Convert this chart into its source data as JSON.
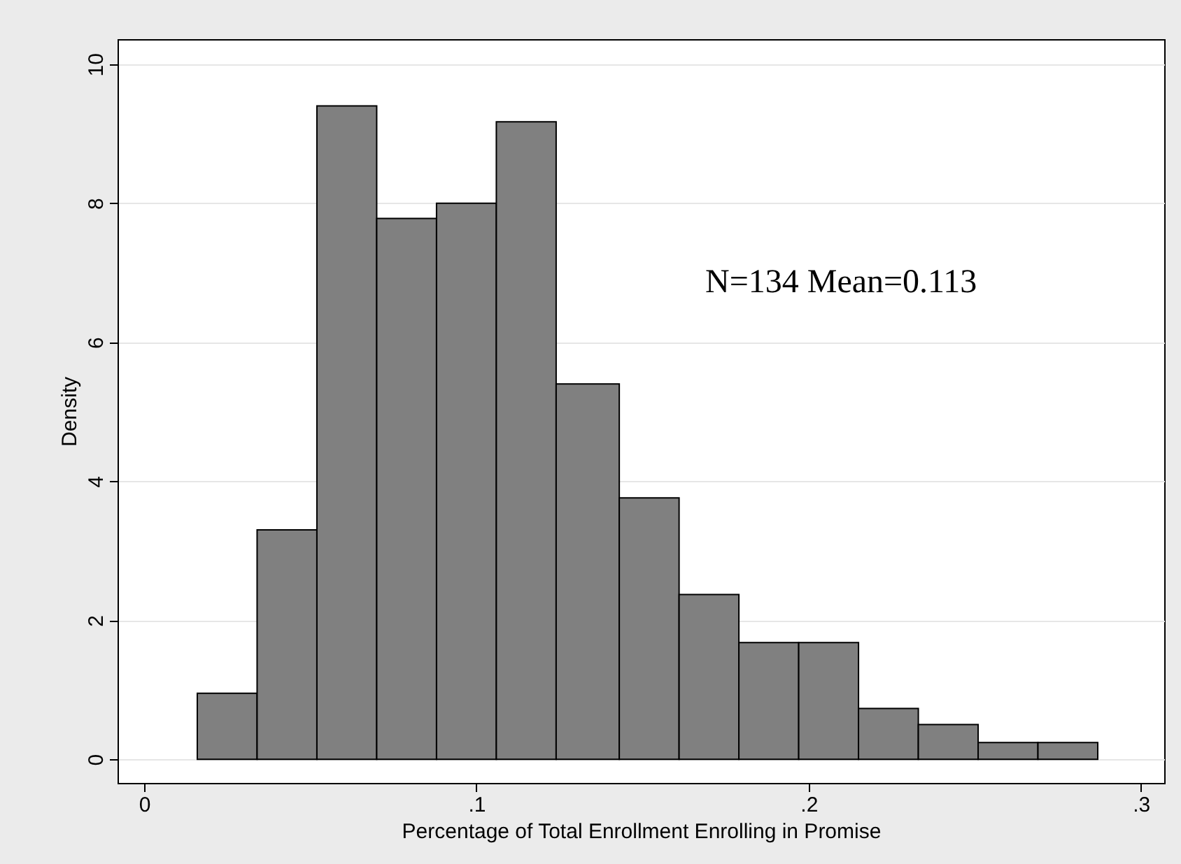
{
  "chart_data": {
    "type": "histogram",
    "xlabel": "Percentage of Total Enrollment Enrolling in Promise",
    "ylabel": "Density",
    "bins": [
      0.016,
      0.034,
      0.052,
      0.07,
      0.088,
      0.106,
      0.124,
      0.143,
      0.161,
      0.179,
      0.197,
      0.215,
      0.233,
      0.251,
      0.269,
      0.287
    ],
    "values": [
      0.95,
      3.3,
      9.4,
      7.78,
      8.0,
      9.17,
      5.4,
      3.76,
      2.37,
      1.68,
      1.68,
      0.73,
      0.5,
      0.24,
      0.24
    ],
    "color": "#808080",
    "xlim": [
      -0.008,
      0.307
    ],
    "xticks": [
      0,
      {
        "value": 0.1,
        "label": ".1"
      },
      {
        "value": 0.2,
        "label": ".2"
      },
      {
        "value": 0.3,
        "label": ".3"
      }
    ],
    "ylim": [
      -0.34,
      10.36
    ],
    "yticks": [
      0,
      2,
      4,
      6,
      8,
      10
    ],
    "grid": "y",
    "annotations": [
      "N=134 Mean=0.113"
    ]
  }
}
